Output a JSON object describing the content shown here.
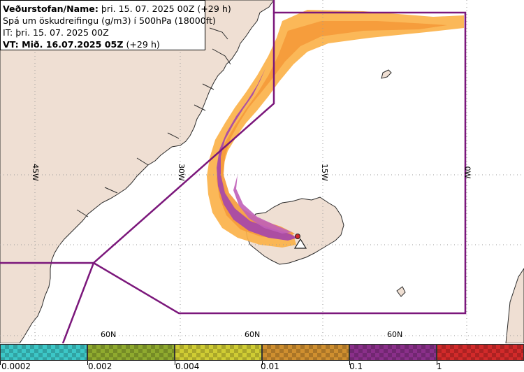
{
  "header": {
    "line1_bold": "Veðurstofan/Name:",
    "line1_rest": " þri. 15. 07. 2025 00Z (+29 h)",
    "line2": "Spá um öskudreifingu (g/m3) í 500hPa (18000ft)",
    "line3": "IT: þri. 15. 07. 2025 00Z",
    "line4_bold": "VT: Mið. 16.07.2025 05Z",
    "line4_rest": " (+29 h)"
  },
  "grid": {
    "lon_labels": [
      "45W",
      "30W",
      "15W",
      "0W"
    ],
    "lat_labels": [
      "60N",
      "60N",
      "60N"
    ]
  },
  "legend": {
    "ticks": [
      "0.0002",
      "0.002",
      "0.004",
      "0.01",
      "0.1",
      "1"
    ],
    "colors": [
      "#3cc7c7",
      "#8faa2e",
      "#cfcc33",
      "#cf8f2f",
      "#8a2f8a",
      "#d22a2a"
    ]
  },
  "colors": {
    "land": "#efdfd3",
    "sea": "#ffffff",
    "coast": "#2a2a2a",
    "grid": "#9a9a9a",
    "boundary": "#7b177b",
    "plume_outer": "#fbb24a",
    "plume_mid": "#f59a3a",
    "plume_core": "#a84aa8",
    "plume_inner": "#c060b8"
  },
  "icons": {
    "volcano": "volcano-icon"
  }
}
